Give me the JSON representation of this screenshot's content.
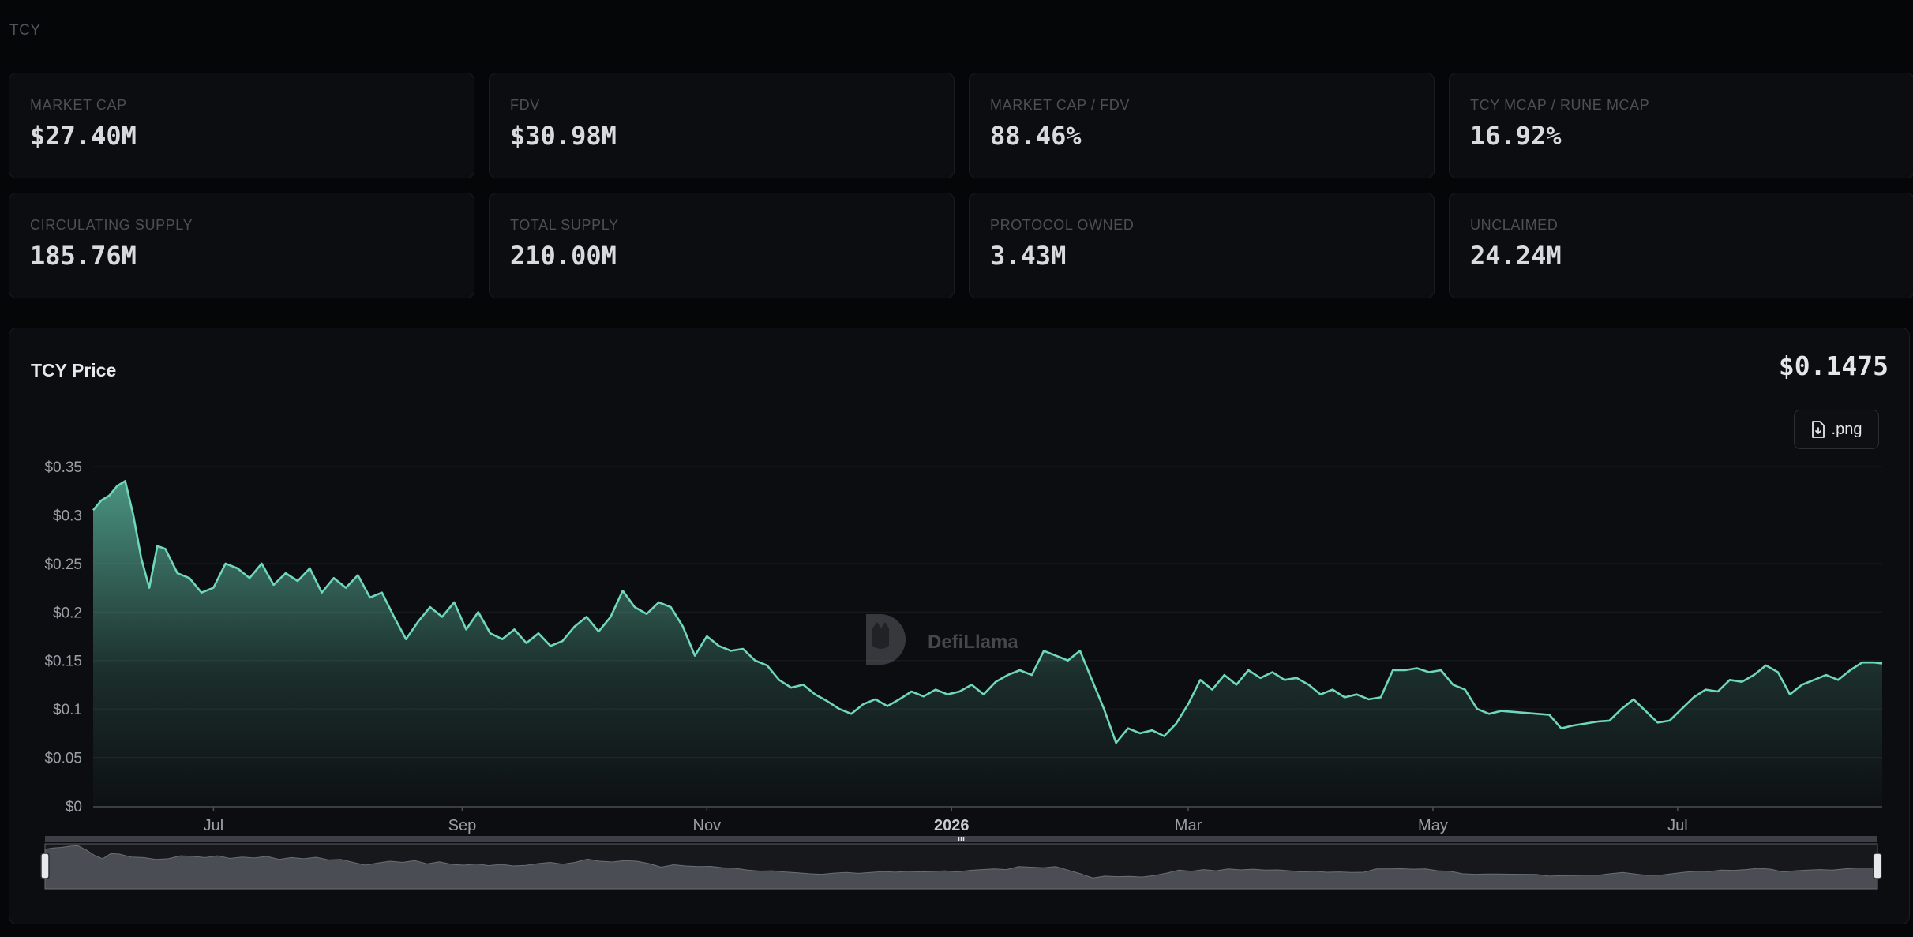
{
  "page": {
    "label": "TCY"
  },
  "stats": [
    {
      "label": "MARKET CAP",
      "value": "$27.40M"
    },
    {
      "label": "FDV",
      "value": "$30.98M"
    },
    {
      "label": "MARKET CAP / FDV",
      "value": "88.46%"
    },
    {
      "label": "TCY MCAP / RUNE MCAP",
      "value": "16.92%"
    },
    {
      "label": "CIRCULATING SUPPLY",
      "value": "185.76M"
    },
    {
      "label": "TOTAL SUPPLY",
      "value": "210.00M"
    },
    {
      "label": "PROTOCOL OWNED",
      "value": "3.43M"
    },
    {
      "label": "UNCLAIMED",
      "value": "24.24M"
    }
  ],
  "chart_header": {
    "title": "TCY Price",
    "current_price": "$0.1475",
    "export_label": ".png",
    "watermark": "DefiLlama"
  },
  "colors": {
    "line": "#6fd7bd",
    "area_top": "#5fbfa6",
    "background": "#0c0d10"
  },
  "chart_data": {
    "type": "area",
    "title": "TCY Price",
    "xlabel": "",
    "ylabel": "",
    "ylim": [
      0,
      0.35
    ],
    "y_ticks": [
      {
        "value": 0,
        "label": "$0"
      },
      {
        "value": 0.05,
        "label": "$0.05"
      },
      {
        "value": 0.1,
        "label": "$0.1"
      },
      {
        "value": 0.15,
        "label": "$0.15"
      },
      {
        "value": 0.2,
        "label": "$0.2"
      },
      {
        "value": 0.25,
        "label": "$0.25"
      },
      {
        "value": 0.3,
        "label": "$0.3"
      },
      {
        "value": 0.35,
        "label": "$0.35"
      }
    ],
    "x_range": [
      "2025-06-01",
      "2026-08-21"
    ],
    "x_ticks": [
      {
        "date": "2025-07-01",
        "label": "Jul",
        "bold": false
      },
      {
        "date": "2025-09-01",
        "label": "Sep",
        "bold": false
      },
      {
        "date": "2025-11-01",
        "label": "Nov",
        "bold": false
      },
      {
        "date": "2026-01-01",
        "label": "2026",
        "bold": true
      },
      {
        "date": "2026-03-01",
        "label": "Mar",
        "bold": false
      },
      {
        "date": "2026-05-01",
        "label": "May",
        "bold": false
      },
      {
        "date": "2026-07-01",
        "label": "Jul",
        "bold": false
      }
    ],
    "grid": true,
    "legend": "none",
    "series": [
      {
        "points": [
          [
            "2025-06-01",
            0.305
          ],
          [
            "2025-06-03",
            0.315
          ],
          [
            "2025-06-05",
            0.32
          ],
          [
            "2025-06-07",
            0.33
          ],
          [
            "2025-06-09",
            0.335
          ],
          [
            "2025-06-11",
            0.3
          ],
          [
            "2025-06-13",
            0.255
          ],
          [
            "2025-06-15",
            0.225
          ],
          [
            "2025-06-17",
            0.268
          ],
          [
            "2025-06-19",
            0.265
          ],
          [
            "2025-06-22",
            0.24
          ],
          [
            "2025-06-25",
            0.235
          ],
          [
            "2025-06-28",
            0.22
          ],
          [
            "2025-07-01",
            0.225
          ],
          [
            "2025-07-04",
            0.25
          ],
          [
            "2025-07-07",
            0.245
          ],
          [
            "2025-07-10",
            0.235
          ],
          [
            "2025-07-13",
            0.25
          ],
          [
            "2025-07-16",
            0.228
          ],
          [
            "2025-07-19",
            0.24
          ],
          [
            "2025-07-22",
            0.232
          ],
          [
            "2025-07-25",
            0.245
          ],
          [
            "2025-07-28",
            0.22
          ],
          [
            "2025-07-31",
            0.235
          ],
          [
            "2025-08-03",
            0.225
          ],
          [
            "2025-08-06",
            0.238
          ],
          [
            "2025-08-09",
            0.215
          ],
          [
            "2025-08-12",
            0.22
          ],
          [
            "2025-08-15",
            0.195
          ],
          [
            "2025-08-18",
            0.172
          ],
          [
            "2025-08-21",
            0.19
          ],
          [
            "2025-08-24",
            0.205
          ],
          [
            "2025-08-27",
            0.195
          ],
          [
            "2025-08-30",
            0.21
          ],
          [
            "2025-09-02",
            0.182
          ],
          [
            "2025-09-05",
            0.2
          ],
          [
            "2025-09-08",
            0.178
          ],
          [
            "2025-09-11",
            0.172
          ],
          [
            "2025-09-14",
            0.182
          ],
          [
            "2025-09-17",
            0.168
          ],
          [
            "2025-09-20",
            0.178
          ],
          [
            "2025-09-23",
            0.165
          ],
          [
            "2025-09-26",
            0.17
          ],
          [
            "2025-09-29",
            0.185
          ],
          [
            "2025-10-02",
            0.195
          ],
          [
            "2025-10-05",
            0.18
          ],
          [
            "2025-10-08",
            0.195
          ],
          [
            "2025-10-11",
            0.222
          ],
          [
            "2025-10-14",
            0.205
          ],
          [
            "2025-10-17",
            0.198
          ],
          [
            "2025-10-20",
            0.21
          ],
          [
            "2025-10-23",
            0.205
          ],
          [
            "2025-10-26",
            0.185
          ],
          [
            "2025-10-29",
            0.155
          ],
          [
            "2025-11-01",
            0.175
          ],
          [
            "2025-11-04",
            0.165
          ],
          [
            "2025-11-07",
            0.16
          ],
          [
            "2025-11-10",
            0.162
          ],
          [
            "2025-11-13",
            0.15
          ],
          [
            "2025-11-16",
            0.145
          ],
          [
            "2025-11-19",
            0.13
          ],
          [
            "2025-11-22",
            0.122
          ],
          [
            "2025-11-25",
            0.125
          ],
          [
            "2025-11-28",
            0.115
          ],
          [
            "2025-12-01",
            0.108
          ],
          [
            "2025-12-04",
            0.1
          ],
          [
            "2025-12-07",
            0.095
          ],
          [
            "2025-12-10",
            0.105
          ],
          [
            "2025-12-13",
            0.11
          ],
          [
            "2025-12-16",
            0.103
          ],
          [
            "2025-12-19",
            0.11
          ],
          [
            "2025-12-22",
            0.118
          ],
          [
            "2025-12-25",
            0.113
          ],
          [
            "2025-12-28",
            0.12
          ],
          [
            "2025-12-31",
            0.115
          ],
          [
            "2026-01-03",
            0.118
          ],
          [
            "2026-01-06",
            0.125
          ],
          [
            "2026-01-09",
            0.115
          ],
          [
            "2026-01-12",
            0.128
          ],
          [
            "2026-01-15",
            0.135
          ],
          [
            "2026-01-18",
            0.14
          ],
          [
            "2026-01-21",
            0.135
          ],
          [
            "2026-01-24",
            0.16
          ],
          [
            "2026-01-27",
            0.155
          ],
          [
            "2026-01-30",
            0.15
          ],
          [
            "2026-02-02",
            0.16
          ],
          [
            "2026-02-05",
            0.13
          ],
          [
            "2026-02-08",
            0.1
          ],
          [
            "2026-02-11",
            0.065
          ],
          [
            "2026-02-14",
            0.08
          ],
          [
            "2026-02-17",
            0.075
          ],
          [
            "2026-02-20",
            0.078
          ],
          [
            "2026-02-23",
            0.072
          ],
          [
            "2026-02-26",
            0.085
          ],
          [
            "2026-03-01",
            0.105
          ],
          [
            "2026-03-04",
            0.13
          ],
          [
            "2026-03-07",
            0.12
          ],
          [
            "2026-03-10",
            0.135
          ],
          [
            "2026-03-13",
            0.125
          ],
          [
            "2026-03-16",
            0.14
          ],
          [
            "2026-03-19",
            0.132
          ],
          [
            "2026-03-22",
            0.138
          ],
          [
            "2026-03-25",
            0.13
          ],
          [
            "2026-03-28",
            0.132
          ],
          [
            "2026-03-31",
            0.125
          ],
          [
            "2026-04-03",
            0.115
          ],
          [
            "2026-04-06",
            0.12
          ],
          [
            "2026-04-09",
            0.112
          ],
          [
            "2026-04-12",
            0.115
          ],
          [
            "2026-04-15",
            0.11
          ],
          [
            "2026-04-18",
            0.112
          ],
          [
            "2026-04-21",
            0.14
          ],
          [
            "2026-04-24",
            0.14
          ],
          [
            "2026-04-27",
            0.142
          ],
          [
            "2026-04-30",
            0.138
          ],
          [
            "2026-05-03",
            0.14
          ],
          [
            "2026-05-06",
            0.125
          ],
          [
            "2026-05-09",
            0.12
          ],
          [
            "2026-05-12",
            0.1
          ],
          [
            "2026-05-15",
            0.095
          ],
          [
            "2026-05-18",
            0.098
          ],
          [
            "2026-05-21",
            0.097
          ],
          [
            "2026-05-24",
            0.096
          ],
          [
            "2026-05-27",
            0.095
          ],
          [
            "2026-05-30",
            0.094
          ],
          [
            "2026-06-02",
            0.08
          ],
          [
            "2026-06-05",
            0.083
          ],
          [
            "2026-06-08",
            0.085
          ],
          [
            "2026-06-11",
            0.087
          ],
          [
            "2026-06-14",
            0.088
          ],
          [
            "2026-06-17",
            0.1
          ],
          [
            "2026-06-20",
            0.11
          ],
          [
            "2026-06-23",
            0.098
          ],
          [
            "2026-06-26",
            0.086
          ],
          [
            "2026-06-29",
            0.088
          ],
          [
            "2026-07-02",
            0.1
          ],
          [
            "2026-07-05",
            0.112
          ],
          [
            "2026-07-08",
            0.12
          ],
          [
            "2026-07-11",
            0.118
          ],
          [
            "2026-07-14",
            0.13
          ],
          [
            "2026-07-17",
            0.128
          ],
          [
            "2026-07-20",
            0.135
          ],
          [
            "2026-07-23",
            0.145
          ],
          [
            "2026-07-26",
            0.138
          ],
          [
            "2026-07-29",
            0.115
          ],
          [
            "2026-08-01",
            0.125
          ],
          [
            "2026-08-04",
            0.13
          ],
          [
            "2026-08-07",
            0.135
          ],
          [
            "2026-08-10",
            0.13
          ],
          [
            "2026-08-13",
            0.14
          ],
          [
            "2026-08-16",
            0.148
          ],
          [
            "2026-08-19",
            0.148
          ],
          [
            "2026-08-21",
            0.147
          ]
        ]
      }
    ]
  }
}
